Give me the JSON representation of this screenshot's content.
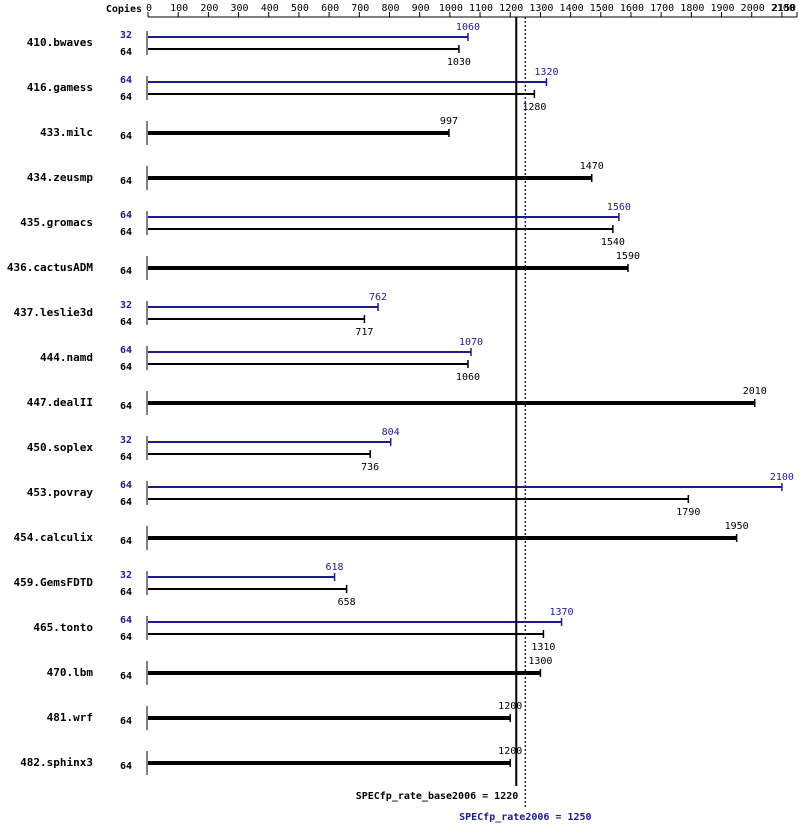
{
  "chart_data": {
    "type": "bar",
    "orientation": "horizontal",
    "copies_label": "Copies",
    "categories": [
      "410.bwaves",
      "416.gamess",
      "433.milc",
      "434.zeusmp",
      "435.gromacs",
      "436.cactusADM",
      "437.leslie3d",
      "444.namd",
      "447.dealII",
      "450.soplex",
      "453.povray",
      "454.calculix",
      "459.GemsFDTD",
      "465.tonto",
      "470.lbm",
      "481.wrf",
      "482.sphinx3"
    ],
    "series": [
      {
        "color": "#1c1c8c",
        "copies": [
          32,
          64,
          null,
          null,
          64,
          null,
          32,
          64,
          null,
          32,
          64,
          null,
          32,
          64,
          null,
          null,
          null
        ],
        "values": [
          1060,
          1320,
          null,
          null,
          1560,
          null,
          762,
          1070,
          null,
          804,
          2100,
          null,
          618,
          1370,
          null,
          null,
          null
        ]
      },
      {
        "color": "#000000",
        "copies": [
          64,
          64,
          64,
          64,
          64,
          64,
          64,
          64,
          64,
          64,
          64,
          64,
          64,
          64,
          64,
          64,
          64
        ],
        "values": [
          1030,
          1280,
          997,
          1470,
          1540,
          1590,
          717,
          1060,
          2010,
          736,
          1790,
          1950,
          658,
          1310,
          1300,
          1200,
          1200
        ]
      }
    ],
    "xlim": [
      0,
      2150
    ],
    "xticks": [
      0,
      100,
      200,
      300,
      400,
      500,
      600,
      700,
      800,
      900,
      1000,
      1100,
      1200,
      1300,
      1400,
      1500,
      1600,
      1700,
      1800,
      1900,
      2000,
      2100,
      2150
    ],
    "reference_lines": [
      {
        "label": "SPECfp_rate_base2006 = 1220",
        "value": 1220,
        "color": "#000000",
        "style": "solid"
      },
      {
        "label": "SPECfp_rate2006 = 1250",
        "value": 1250,
        "color": "#1c1c8c",
        "style": "dotted"
      }
    ]
  }
}
